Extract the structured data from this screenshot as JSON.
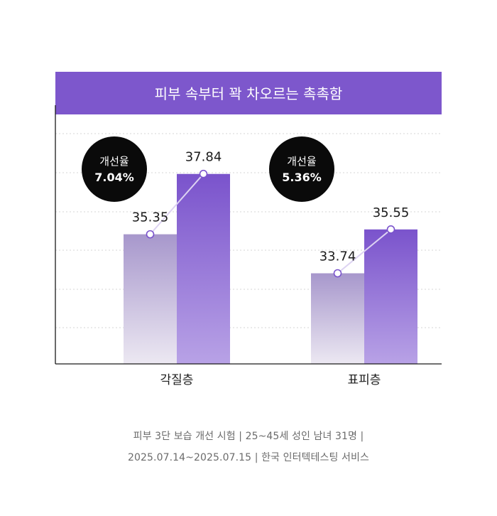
{
  "chart_data": {
    "type": "bar",
    "title": "피부 속부터 꽉 차오르는 촉촉함",
    "categories": [
      "각질층",
      "표피층"
    ],
    "series": [
      {
        "values": [
          35.35,
          33.74
        ]
      },
      {
        "values": [
          37.84,
          35.55
        ]
      }
    ],
    "ylim": [
      30,
      38.8
    ],
    "grid": true,
    "improvement": [
      {
        "label": "개선율",
        "value": "7.04%"
      },
      {
        "label": "개선율",
        "value": "5.36%"
      }
    ],
    "colors": {
      "header": "#7d57cc",
      "before_top": "#a797cc",
      "before_bottom": "#ece8f2",
      "after_top": "#7a53cc",
      "after_bottom": "#b8a2e6",
      "badge": "#0a0a0a",
      "connector": "#ddd3f2",
      "grid": "#d4d4d4",
      "axis": "#1a1a1a"
    }
  },
  "footnote": {
    "line1": "피부 3단 보습 개선 시험 | 25~45세 성인 남녀 31명 |",
    "line2": "2025.07.14~2025.07.15 | 한국 인터텍테스팅 서비스"
  }
}
